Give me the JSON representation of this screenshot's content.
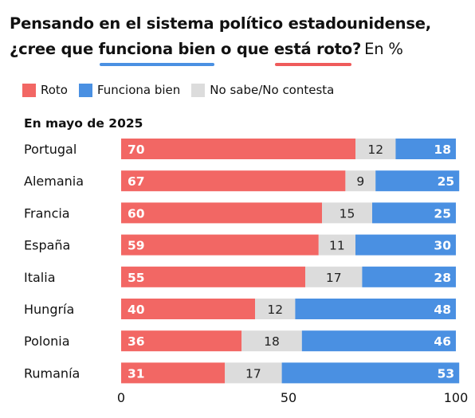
{
  "title": {
    "part1": "Pensando en el sistema político estadounidense, ¿cree que ",
    "highlight1": "funciona bien",
    "part2": " o que ",
    "highlight2": "está roto",
    "part3": "?",
    "unit": "En %"
  },
  "colors": {
    "roto": "#f26764",
    "funciona": "#4a90e2",
    "nosabe": "#dcdcdc",
    "highlight_blue": "#4a90e2",
    "highlight_red": "#ef5b5b"
  },
  "chart_data": {
    "type": "bar",
    "orientation": "horizontal",
    "stacked": true,
    "subtitle": "En mayo de 2025",
    "categories": [
      "Portugal",
      "Alemania",
      "Francia",
      "España",
      "Italia",
      "Hungría",
      "Polonia",
      "Rumanía"
    ],
    "series": [
      {
        "name": "Roto",
        "color": "#f26764",
        "values": [
          70,
          67,
          60,
          59,
          55,
          40,
          36,
          31
        ]
      },
      {
        "name": "Funciona bien",
        "color": "#4a90e2",
        "values": [
          18,
          25,
          25,
          30,
          28,
          48,
          46,
          53
        ]
      },
      {
        "name": "No sabe/No contesta",
        "color": "#dcdcdc",
        "values": [
          12,
          9,
          15,
          11,
          17,
          12,
          18,
          17
        ]
      }
    ],
    "stack_order": [
      "Roto",
      "No sabe/No contesta",
      "Funciona bien"
    ],
    "xlim": [
      0,
      100
    ],
    "xticks": [
      0,
      50,
      100
    ],
    "legend_position": "top-left"
  }
}
